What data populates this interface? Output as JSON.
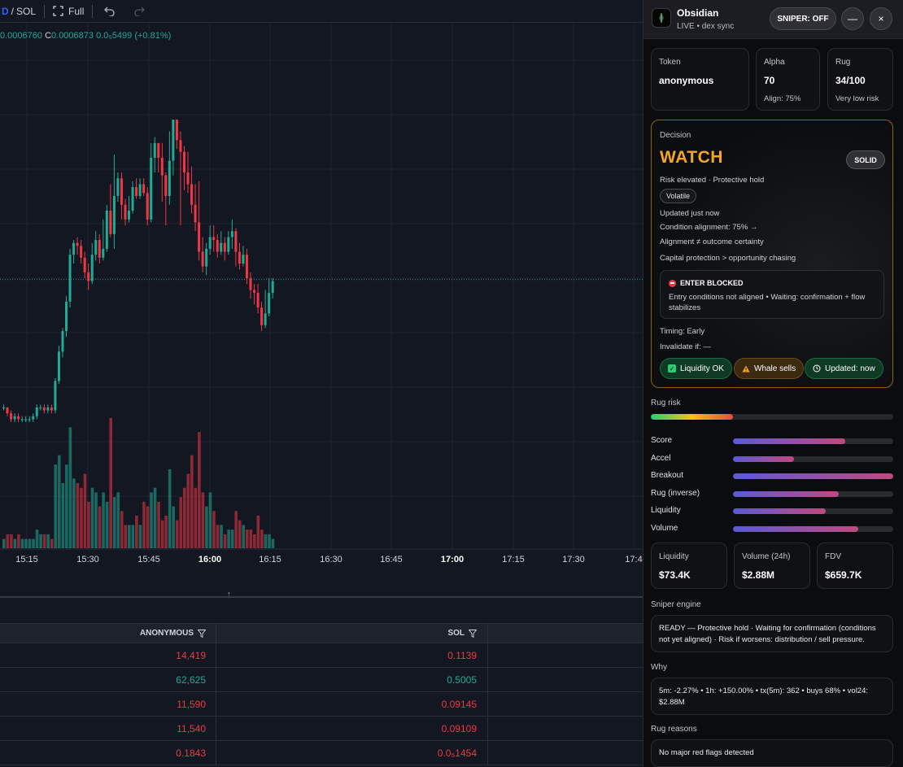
{
  "toolbar": {
    "pair_prefix": "D",
    "pair_sep": "/",
    "pair_quote": "SOL",
    "full_label": "Full"
  },
  "ohlc": {
    "prefix_value": "0.0006760",
    "close_key": "C",
    "close_value": "0.0006873",
    "change": "0.0₅5499 (+0.81%)"
  },
  "chart_data": {
    "type": "candlestick",
    "x_ticks": [
      "15:15",
      "15:30",
      "15:45",
      "16:00",
      "16:15",
      "16:30",
      "16:45",
      "17:00",
      "17:15",
      "17:30",
      "17:4"
    ],
    "last_price_line": true,
    "grid": true,
    "candles": [
      {
        "o": 0.00026,
        "c": 0.00026,
        "h": 0.00027,
        "l": 0.00025,
        "v": 2
      },
      {
        "o": 0.00026,
        "c": 0.00024,
        "h": 0.00026,
        "l": 0.00023,
        "v": 3
      },
      {
        "o": 0.00024,
        "c": 0.00022,
        "h": 0.00025,
        "l": 0.00021,
        "v": 3
      },
      {
        "o": 0.00022,
        "c": 0.00023,
        "h": 0.00024,
        "l": 0.00021,
        "v": 2
      },
      {
        "o": 0.00023,
        "c": 0.00022,
        "h": 0.00024,
        "l": 0.00021,
        "v": 3
      },
      {
        "o": 0.00022,
        "c": 0.00022,
        "h": 0.00023,
        "l": 0.00021,
        "v": 2
      },
      {
        "o": 0.00022,
        "c": 0.00022,
        "h": 0.00023,
        "l": 0.00021,
        "v": 2
      },
      {
        "o": 0.00022,
        "c": 0.00022,
        "h": 0.00023,
        "l": 0.00021,
        "v": 2
      },
      {
        "o": 0.00022,
        "c": 0.00023,
        "h": 0.00024,
        "l": 0.00021,
        "v": 2
      },
      {
        "o": 0.00023,
        "c": 0.00026,
        "h": 0.00027,
        "l": 0.00022,
        "v": 4
      },
      {
        "o": 0.00026,
        "c": 0.00026,
        "h": 0.00027,
        "l": 0.00025,
        "v": 3
      },
      {
        "o": 0.00026,
        "c": 0.00025,
        "h": 0.00027,
        "l": 0.00024,
        "v": 3
      },
      {
        "o": 0.00025,
        "c": 0.00026,
        "h": 0.00027,
        "l": 0.00024,
        "v": 3
      },
      {
        "o": 0.00026,
        "c": 0.00025,
        "h": 0.00027,
        "l": 0.00024,
        "v": 2
      },
      {
        "o": 0.00025,
        "c": 0.00035,
        "h": 0.00036,
        "l": 0.00024,
        "v": 18
      },
      {
        "o": 0.00035,
        "c": 0.00045,
        "h": 0.00047,
        "l": 0.00034,
        "v": 20
      },
      {
        "o": 0.00045,
        "c": 0.00052,
        "h": 0.00053,
        "l": 0.00043,
        "v": 14
      },
      {
        "o": 0.00052,
        "c": 0.00062,
        "h": 0.00064,
        "l": 0.0005,
        "v": 18
      },
      {
        "o": 0.00062,
        "c": 0.00078,
        "h": 0.0008,
        "l": 0.0006,
        "v": 26
      },
      {
        "o": 0.00078,
        "c": 0.00082,
        "h": 0.00083,
        "l": 0.00075,
        "v": 15
      },
      {
        "o": 0.00082,
        "c": 0.00081,
        "h": 0.00084,
        "l": 0.00078,
        "v": 14
      },
      {
        "o": 0.00081,
        "c": 0.00077,
        "h": 0.00083,
        "l": 0.00075,
        "v": 13
      },
      {
        "o": 0.00077,
        "c": 0.00072,
        "h": 0.00079,
        "l": 0.0007,
        "v": 16
      },
      {
        "o": 0.00072,
        "c": 0.00069,
        "h": 0.00075,
        "l": 0.00066,
        "v": 10
      },
      {
        "o": 0.00069,
        "c": 0.00078,
        "h": 0.00082,
        "l": 0.00068,
        "v": 13
      },
      {
        "o": 0.00078,
        "c": 0.00083,
        "h": 0.00086,
        "l": 0.00076,
        "v": 12
      },
      {
        "o": 0.00083,
        "c": 0.00077,
        "h": 0.00085,
        "l": 0.00075,
        "v": 9
      },
      {
        "o": 0.00077,
        "c": 0.0008,
        "h": 0.0009,
        "l": 0.00076,
        "v": 12
      },
      {
        "o": 0.0008,
        "c": 0.00093,
        "h": 0.00095,
        "l": 0.00079,
        "v": 10
      },
      {
        "o": 0.00093,
        "c": 0.00085,
        "h": 0.00102,
        "l": 0.00084,
        "v": 28
      },
      {
        "o": 0.00085,
        "c": 0.00098,
        "h": 0.00112,
        "l": 0.0008,
        "v": 11
      },
      {
        "o": 0.00098,
        "c": 0.00104,
        "h": 0.00106,
        "l": 0.00096,
        "v": 12
      },
      {
        "o": 0.00104,
        "c": 0.00095,
        "h": 0.00106,
        "l": 0.0009,
        "v": 8
      },
      {
        "o": 0.00095,
        "c": 0.0009,
        "h": 0.00097,
        "l": 0.00088,
        "v": 5
      },
      {
        "o": 0.0009,
        "c": 0.00093,
        "h": 0.00098,
        "l": 0.00089,
        "v": 5
      },
      {
        "o": 0.00093,
        "c": 0.00101,
        "h": 0.00103,
        "l": 0.00092,
        "v": 5
      },
      {
        "o": 0.00101,
        "c": 0.00098,
        "h": 0.00104,
        "l": 0.00097,
        "v": 7
      },
      {
        "o": 0.00098,
        "c": 0.00102,
        "h": 0.00104,
        "l": 0.00097,
        "v": 5
      },
      {
        "o": 0.00102,
        "c": 0.00099,
        "h": 0.00104,
        "l": 0.00098,
        "v": 10
      },
      {
        "o": 0.00099,
        "c": 0.0009,
        "h": 0.00101,
        "l": 0.00088,
        "v": 9
      },
      {
        "o": 0.0009,
        "c": 0.00111,
        "h": 0.00116,
        "l": 0.00089,
        "v": 12
      },
      {
        "o": 0.00111,
        "c": 0.00116,
        "h": 0.00118,
        "l": 0.00106,
        "v": 13
      },
      {
        "o": 0.00116,
        "c": 0.00111,
        "h": 0.00116,
        "l": 0.00106,
        "v": 10
      },
      {
        "o": 0.00111,
        "c": 0.00105,
        "h": 0.00116,
        "l": 0.00096,
        "v": 6
      },
      {
        "o": 0.00105,
        "c": 0.00098,
        "h": 0.00106,
        "l": 0.00088,
        "v": 7
      },
      {
        "o": 0.00098,
        "c": 0.0011,
        "h": 0.0012,
        "l": 0.00095,
        "v": 17
      },
      {
        "o": 0.0011,
        "c": 0.00124,
        "h": 0.00124,
        "l": 0.00105,
        "v": 9
      },
      {
        "o": 0.00124,
        "c": 0.00117,
        "h": 0.00124,
        "l": 0.00114,
        "v": 6
      },
      {
        "o": 0.00117,
        "c": 0.00113,
        "h": 0.0012,
        "l": 0.00088,
        "v": 11
      },
      {
        "o": 0.00113,
        "c": 0.00106,
        "h": 0.00115,
        "l": 0.001,
        "v": 13
      },
      {
        "o": 0.00106,
        "c": 0.00102,
        "h": 0.00113,
        "l": 0.00099,
        "v": 16
      },
      {
        "o": 0.00102,
        "c": 0.00095,
        "h": 0.00108,
        "l": 0.00092,
        "v": 20
      },
      {
        "o": 0.00095,
        "c": 0.00089,
        "h": 0.00102,
        "l": 0.00086,
        "v": 13
      },
      {
        "o": 0.00089,
        "c": 0.00079,
        "h": 0.00103,
        "l": 0.00076,
        "v": 25
      },
      {
        "o": 0.00079,
        "c": 0.00074,
        "h": 0.00084,
        "l": 0.00072,
        "v": 12
      },
      {
        "o": 0.00074,
        "c": 0.0008,
        "h": 0.00082,
        "l": 0.00071,
        "v": 9
      },
      {
        "o": 0.0008,
        "c": 0.00084,
        "h": 0.00088,
        "l": 0.00078,
        "v": 12
      },
      {
        "o": 0.00084,
        "c": 0.00083,
        "h": 0.00088,
        "l": 0.00079,
        "v": 8
      },
      {
        "o": 0.00083,
        "c": 0.00079,
        "h": 0.00085,
        "l": 0.00077,
        "v": 5
      },
      {
        "o": 0.00079,
        "c": 0.00082,
        "h": 0.00086,
        "l": 0.00078,
        "v": 5
      },
      {
        "o": 0.00082,
        "c": 0.00079,
        "h": 0.00084,
        "l": 0.00076,
        "v": 3
      },
      {
        "o": 0.00079,
        "c": 0.00084,
        "h": 0.00086,
        "l": 0.00078,
        "v": 4
      },
      {
        "o": 0.00084,
        "c": 0.00086,
        "h": 0.0009,
        "l": 0.0008,
        "v": 4
      },
      {
        "o": 0.00086,
        "c": 0.00079,
        "h": 0.00087,
        "l": 0.00074,
        "v": 8
      },
      {
        "o": 0.00079,
        "c": 0.00075,
        "h": 0.00082,
        "l": 0.00073,
        "v": 6
      },
      {
        "o": 0.00075,
        "c": 0.00078,
        "h": 0.00081,
        "l": 0.00074,
        "v": 5
      },
      {
        "o": 0.00078,
        "c": 0.0007,
        "h": 0.0008,
        "l": 0.00068,
        "v": 4
      },
      {
        "o": 0.0007,
        "c": 0.00066,
        "h": 0.00072,
        "l": 0.00063,
        "v": 4
      },
      {
        "o": 0.00066,
        "c": 0.00065,
        "h": 0.00068,
        "l": 0.00061,
        "v": 3
      },
      {
        "o": 0.00065,
        "c": 0.0006,
        "h": 0.00068,
        "l": 0.00058,
        "v": 7
      },
      {
        "o": 0.0006,
        "c": 0.00054,
        "h": 0.00062,
        "l": 0.00052,
        "v": 4
      },
      {
        "o": 0.00054,
        "c": 0.00058,
        "h": 0.00066,
        "l": 0.00053,
        "v": 3
      },
      {
        "o": 0.00058,
        "c": 0.00065,
        "h": 0.0007,
        "l": 0.00057,
        "v": 3
      },
      {
        "o": 0.00065,
        "c": 0.00069,
        "h": 0.0007,
        "l": 0.00063,
        "v": 2
      }
    ]
  },
  "trades": {
    "headers": [
      "ANONYMOUS",
      "SOL"
    ],
    "rows": [
      {
        "amount": "14,419",
        "sol": "0.1139",
        "side": "sell"
      },
      {
        "amount": "62,625",
        "sol": "0.5005",
        "side": "buy"
      },
      {
        "amount": "11,590",
        "sol": "0.09145",
        "side": "sell"
      },
      {
        "amount": "11,540",
        "sol": "0.09109",
        "side": "sell"
      },
      {
        "amount": "0.1843",
        "sol": "0.0₅1454",
        "side": "sell"
      }
    ]
  },
  "panel": {
    "title": "Obsidian",
    "subtitle": "LIVE • dex sync",
    "sniper_label": "SNIPER: OFF",
    "minimize_glyph": "—",
    "close_glyph": "×",
    "token_label": "Token",
    "token_value": "anonymous",
    "alpha_label": "Alpha",
    "alpha_value": "70",
    "alpha_sub": "Align: 75%",
    "rug_label": "Rug",
    "rug_value": "34/100",
    "rug_sub": "Very low risk",
    "decision": {
      "label": "Decision",
      "state": "WATCH",
      "badge": "SOLID",
      "risk_line": "Risk elevated · Protective hold",
      "volatility": "Volatile",
      "updated": "Updated just now",
      "alignment": "Condition alignment: 75% →",
      "note1": "Alignment ≠ outcome certainty",
      "note2": "Capital protection > opportunity chasing",
      "blocked_title": "ENTER BLOCKED",
      "blocked_body": "Entry conditions not aligned • Waiting: confirmation + flow stabilizes",
      "timing": "Timing: Early",
      "invalidate": "Invalidate if: —",
      "pill_liquidity": "Liquidity OK",
      "pill_whale": "Whale sells",
      "pill_updated": "Updated: now"
    },
    "rug_risk_label": "Rug risk",
    "rug_risk_fill": 0.34,
    "metrics": [
      {
        "label": "Score",
        "value": 0.7
      },
      {
        "label": "Accel",
        "value": 0.38
      },
      {
        "label": "Breakout",
        "value": 1.0
      },
      {
        "label": "Rug (inverse)",
        "value": 0.66
      },
      {
        "label": "Liquidity",
        "value": 0.58
      },
      {
        "label": "Volume",
        "value": 0.78
      }
    ],
    "stats": {
      "liquidity_label": "Liquidity",
      "liquidity_value": "$73.4K",
      "volume_label": "Volume (24h)",
      "volume_value": "$2.88M",
      "fdv_label": "FDV",
      "fdv_value": "$659.7K"
    },
    "sniper_engine_label": "Sniper engine",
    "sniper_engine_text": "READY — Protective hold · Waiting for confirmation (conditions not yet aligned) · Risk if worsens: distribution / sell pressure.",
    "why_label": "Why",
    "why_text": "5m: -2.27% • 1h: +150.00% • tx(5m): 362 • buys 68% • vol24: $2.88M",
    "rug_reasons_label": "Rug reasons",
    "rug_reasons_text": "No major red flags detected"
  },
  "colors": {
    "up": "#22ab94",
    "down": "#f23645",
    "accent": "#f5a524"
  }
}
